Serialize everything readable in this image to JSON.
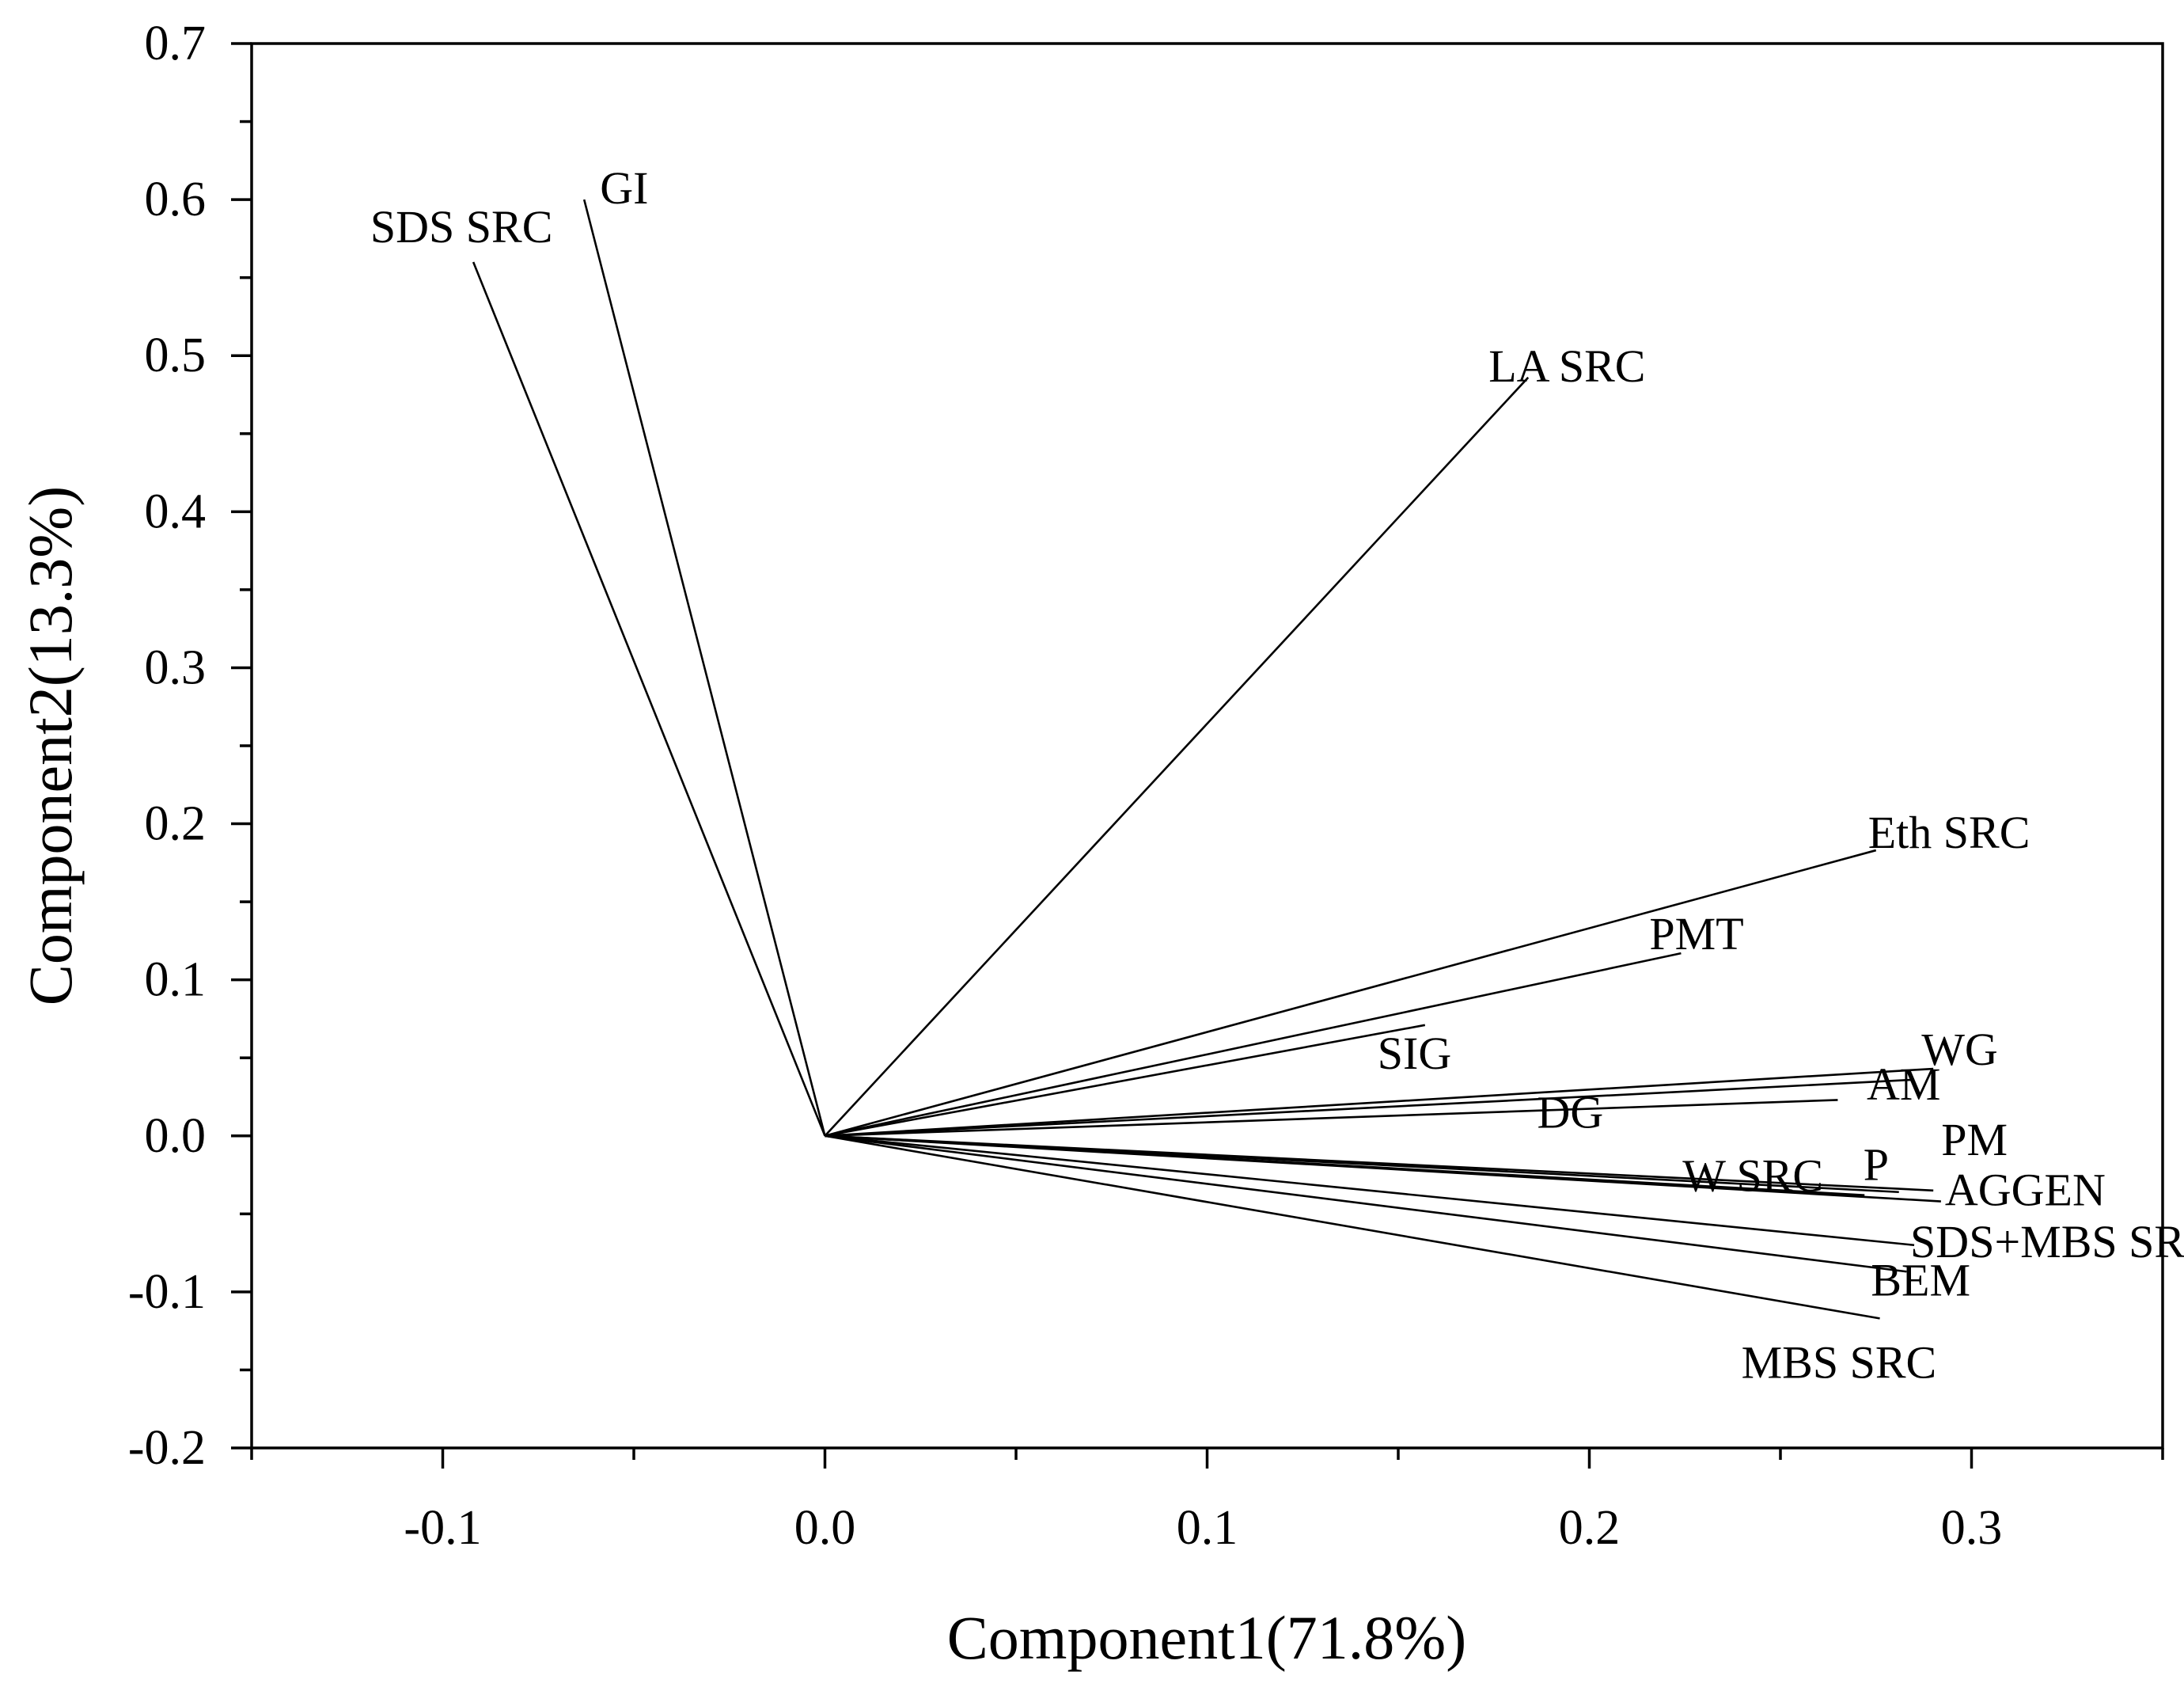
{
  "chart_data": {
    "type": "biplot",
    "xlabel": "Component1(71.8%)",
    "ylabel": "Component2(13.3%)",
    "xlim": [
      -0.15,
      0.35
    ],
    "ylim": [
      -0.2,
      0.7
    ],
    "x_ticks": [
      -0.1,
      0.0,
      0.1,
      0.2,
      0.3
    ],
    "x_tick_labels": [
      "-0.1",
      "0.0",
      "0.1",
      "0.2",
      "0.3"
    ],
    "y_ticks": [
      -0.2,
      -0.1,
      0.0,
      0.1,
      0.2,
      0.3,
      0.4,
      0.5,
      0.6,
      0.7
    ],
    "y_tick_labels": [
      "-0.2",
      "-0.1",
      "0.0",
      "0.1",
      "0.2",
      "0.3",
      "0.4",
      "0.5",
      "0.6",
      "0.7"
    ],
    "vectors": [
      {
        "name": "GI",
        "x": -0.063,
        "y": 0.6
      },
      {
        "name": "SDS SRC",
        "x": -0.092,
        "y": 0.56
      },
      {
        "name": "LA SRC",
        "x": 0.184,
        "y": 0.486
      },
      {
        "name": "Eth SRC",
        "x": 0.275,
        "y": 0.183
      },
      {
        "name": "PMT",
        "x": 0.224,
        "y": 0.117
      },
      {
        "name": "SIG",
        "x": 0.157,
        "y": 0.071
      },
      {
        "name": "WG",
        "x": 0.29,
        "y": 0.043
      },
      {
        "name": "AM",
        "x": 0.285,
        "y": 0.036
      },
      {
        "name": "DG",
        "x": 0.265,
        "y": 0.023
      },
      {
        "name": "PM",
        "x": 0.29,
        "y": -0.035
      },
      {
        "name": "P",
        "x": 0.281,
        "y": -0.036
      },
      {
        "name": "W SRC",
        "x": 0.272,
        "y": -0.038
      },
      {
        "name": "AGGEN",
        "x": 0.292,
        "y": -0.042
      },
      {
        "name": "SDS+MBS SRC",
        "x": 0.285,
        "y": -0.07
      },
      {
        "name": "BEM",
        "x": 0.283,
        "y": -0.087
      },
      {
        "name": "MBS SRC",
        "x": 0.276,
        "y": -0.117
      }
    ]
  }
}
